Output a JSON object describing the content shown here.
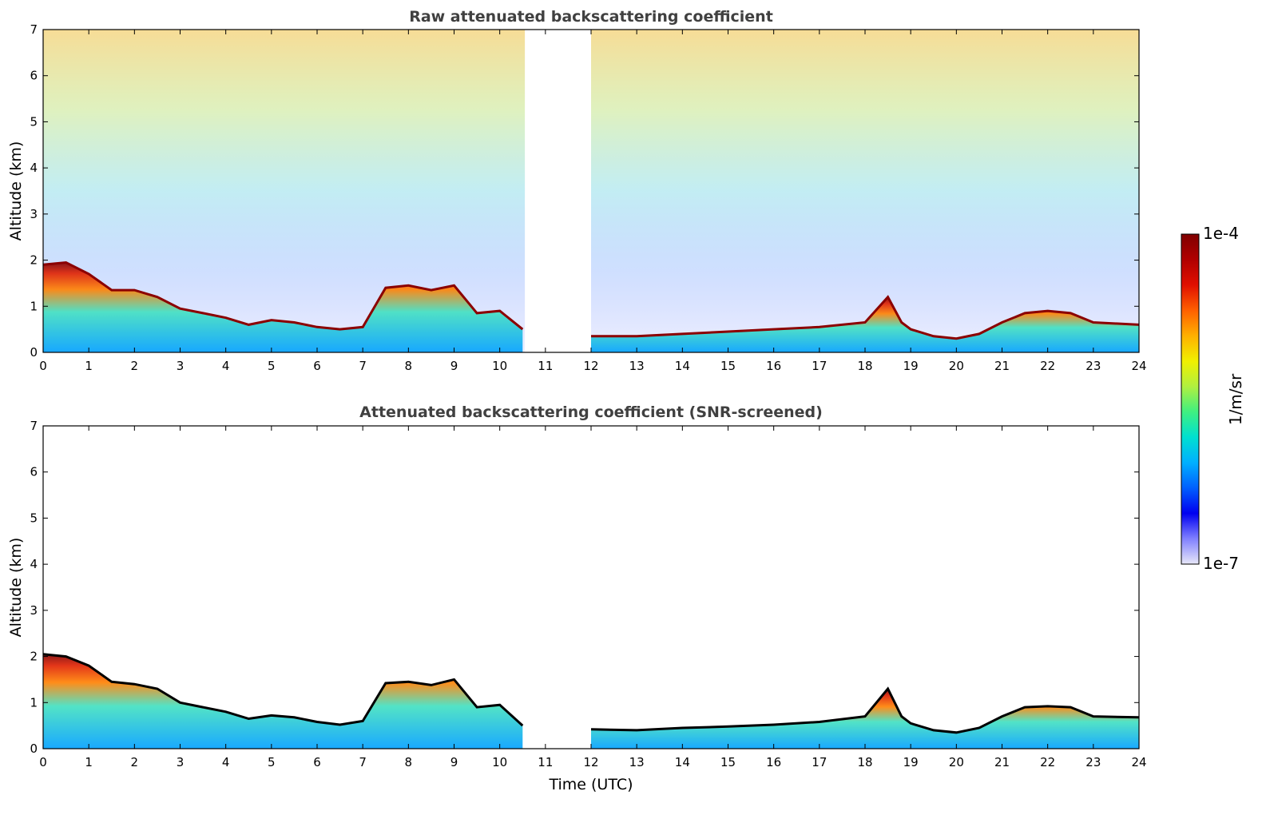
{
  "chart_data": [
    {
      "type": "heatmap",
      "title": "Raw attenuated backscattering coefficient",
      "xlabel": "",
      "ylabel": "Altitude (km)",
      "xlim": [
        0,
        24
      ],
      "ylim": [
        0,
        7
      ],
      "xticks": [
        "0",
        "1",
        "2",
        "3",
        "4",
        "5",
        "6",
        "7",
        "8",
        "9",
        "10",
        "11",
        "12",
        "13",
        "14",
        "15",
        "16",
        "17",
        "18",
        "19",
        "20",
        "21",
        "22",
        "23",
        "24"
      ],
      "yticks": [
        "0",
        "1",
        "2",
        "3",
        "4",
        "5",
        "6",
        "7"
      ],
      "data_gap_utc": [
        10.55,
        12.0
      ],
      "screened": false,
      "layer_top_km": [
        [
          0,
          1.9
        ],
        [
          0.5,
          1.95
        ],
        [
          1,
          1.7
        ],
        [
          1.5,
          1.35
        ],
        [
          2,
          1.35
        ],
        [
          2.5,
          1.2
        ],
        [
          3,
          0.95
        ],
        [
          3.5,
          0.85
        ],
        [
          4,
          0.75
        ],
        [
          4.5,
          0.6
        ],
        [
          5,
          0.7
        ],
        [
          5.5,
          0.65
        ],
        [
          6,
          0.55
        ],
        [
          6.5,
          0.5
        ],
        [
          7,
          0.55
        ],
        [
          7.5,
          1.4
        ],
        [
          8,
          1.45
        ],
        [
          8.5,
          1.35
        ],
        [
          9,
          1.45
        ],
        [
          9.5,
          0.85
        ],
        [
          10,
          0.9
        ],
        [
          10.5,
          0.5
        ],
        [
          12,
          0.35
        ],
        [
          13,
          0.35
        ],
        [
          14,
          0.4
        ],
        [
          15,
          0.45
        ],
        [
          16,
          0.5
        ],
        [
          17,
          0.55
        ],
        [
          18,
          0.65
        ],
        [
          18.5,
          1.2
        ],
        [
          18.8,
          0.65
        ],
        [
          19,
          0.5
        ],
        [
          19.5,
          0.35
        ],
        [
          20,
          0.3
        ],
        [
          20.5,
          0.4
        ],
        [
          21,
          0.65
        ],
        [
          21.5,
          0.85
        ],
        [
          22,
          0.9
        ],
        [
          22.5,
          0.85
        ],
        [
          23,
          0.65
        ],
        [
          24,
          0.6
        ]
      ]
    },
    {
      "type": "heatmap",
      "title": "Attenuated backscattering coefficient (SNR-screened)",
      "xlabel": "Time (UTC)",
      "ylabel": "Altitude (km)",
      "xlim": [
        0,
        24
      ],
      "ylim": [
        0,
        7
      ],
      "xticks": [
        "0",
        "1",
        "2",
        "3",
        "4",
        "5",
        "6",
        "7",
        "8",
        "9",
        "10",
        "11",
        "12",
        "13",
        "14",
        "15",
        "16",
        "17",
        "18",
        "19",
        "20",
        "21",
        "22",
        "23",
        "24"
      ],
      "yticks": [
        "0",
        "1",
        "2",
        "3",
        "4",
        "5",
        "6",
        "7"
      ],
      "data_gap_utc": [
        10.55,
        12.0
      ],
      "screened": true,
      "layer_top_km": [
        [
          0,
          2.05
        ],
        [
          0.5,
          2.0
        ],
        [
          1,
          1.8
        ],
        [
          1.5,
          1.45
        ],
        [
          2,
          1.4
        ],
        [
          2.5,
          1.3
        ],
        [
          3,
          1.0
        ],
        [
          3.5,
          0.9
        ],
        [
          4,
          0.8
        ],
        [
          4.5,
          0.65
        ],
        [
          5,
          0.72
        ],
        [
          5.5,
          0.68
        ],
        [
          6,
          0.58
        ],
        [
          6.5,
          0.52
        ],
        [
          7,
          0.6
        ],
        [
          7.5,
          1.42
        ],
        [
          8,
          1.45
        ],
        [
          8.5,
          1.38
        ],
        [
          9,
          1.5
        ],
        [
          9.5,
          0.9
        ],
        [
          10,
          0.95
        ],
        [
          10.5,
          0.5
        ],
        [
          12,
          0.42
        ],
        [
          13,
          0.4
        ],
        [
          14,
          0.45
        ],
        [
          15,
          0.48
        ],
        [
          16,
          0.52
        ],
        [
          17,
          0.58
        ],
        [
          18,
          0.7
        ],
        [
          18.5,
          1.3
        ],
        [
          18.8,
          0.7
        ],
        [
          19,
          0.55
        ],
        [
          19.5,
          0.4
        ],
        [
          20,
          0.35
        ],
        [
          20.5,
          0.45
        ],
        [
          21,
          0.7
        ],
        [
          21.5,
          0.9
        ],
        [
          22,
          0.92
        ],
        [
          22.5,
          0.9
        ],
        [
          23,
          0.7
        ],
        [
          24,
          0.68
        ]
      ]
    }
  ],
  "colorbar": {
    "label": "1/m/sr",
    "min_label": "1e-7",
    "max_label": "1e-4",
    "stops": [
      "#e8e8f8",
      "#8080ff",
      "#0000f0",
      "#0060ff",
      "#00b0ff",
      "#00e0d0",
      "#40f080",
      "#b0f040",
      "#f0f000",
      "#ffb000",
      "#ff6000",
      "#e01000",
      "#b00000",
      "#800000"
    ]
  }
}
